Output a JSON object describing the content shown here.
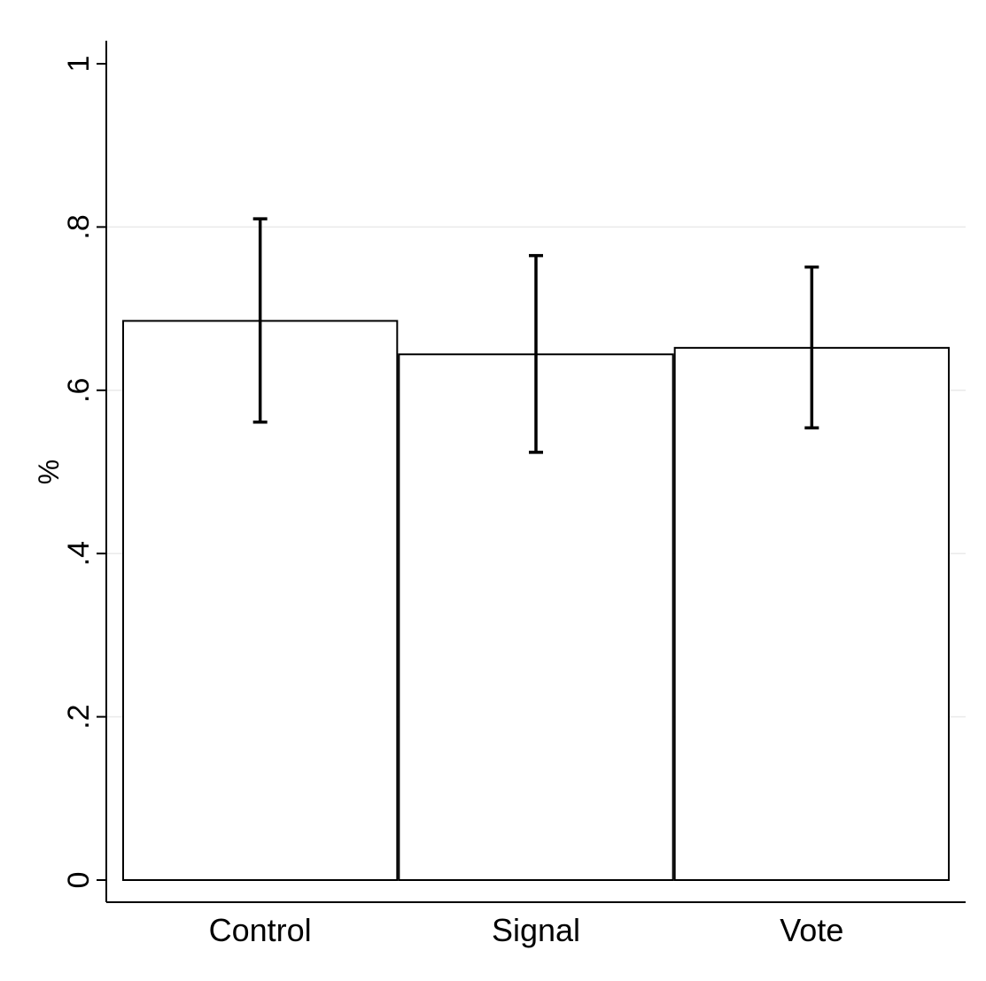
{
  "chart_data": {
    "type": "bar",
    "title": "",
    "xlabel": "",
    "ylabel": "%",
    "categories": [
      "Control",
      "Signal",
      "Vote"
    ],
    "values": [
      0.685,
      0.644,
      0.652
    ],
    "error_bars": [
      {
        "low": 0.561,
        "high": 0.81
      },
      {
        "low": 0.524,
        "high": 0.765
      },
      {
        "low": 0.554,
        "high": 0.751
      }
    ],
    "ylim": [
      0,
      1
    ],
    "yticks": [
      0,
      0.2,
      0.4,
      0.6,
      0.8,
      1
    ],
    "ytick_labels": [
      "0",
      ".2",
      ".4",
      ".6",
      ".8",
      "1"
    ],
    "grid": true,
    "legend": "none",
    "colors": {
      "bar_fill": "#ffffff",
      "bar_stroke": "#000000",
      "error_bar": "#000000",
      "grid": "#eaeaea",
      "axis": "#000000"
    }
  }
}
